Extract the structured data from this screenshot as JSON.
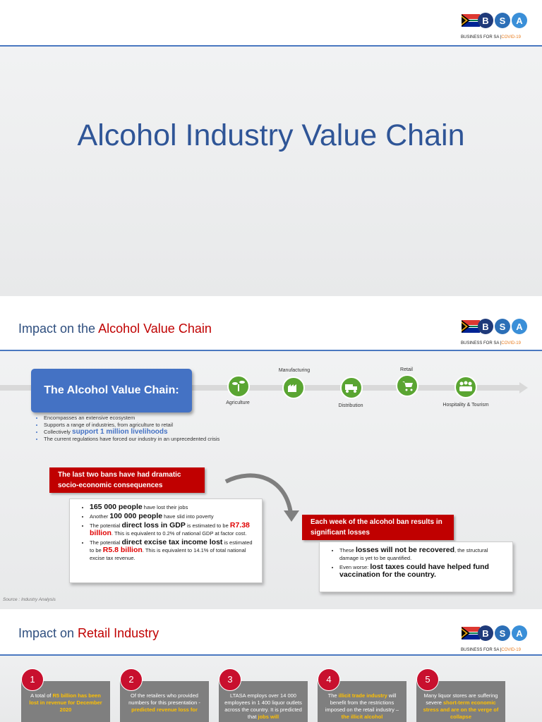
{
  "logo": {
    "letters": [
      "B",
      "S",
      "A"
    ],
    "name": "BUSINESS FOR SA |",
    "tag": "COVID-19"
  },
  "slide1": {
    "title": "Alcohol Industry Value Chain"
  },
  "slide2": {
    "heading": [
      {
        "text": "Impact on the "
      },
      {
        "text": "Alcohol Value Chain",
        "style": "red"
      }
    ],
    "chain_title": "The Alcohol Value Chain:",
    "stages": [
      "Agriculture",
      "Manufacturing",
      "Distribution",
      "Retail",
      "Hospitality & Tourism"
    ],
    "bullets": [
      [
        {
          "text": "Encompasses an extensive ecosystem"
        }
      ],
      [
        {
          "text": "Supports a range of  industries, from agriculture to retail"
        }
      ],
      [
        {
          "text": "Collectively "
        },
        {
          "text": "support 1 million livelihoods",
          "style": "blue-big"
        }
      ],
      [
        {
          "text": "The current regulations have forced our industry in an unprecedented crisis"
        }
      ]
    ],
    "callout1": "The last two bans have had dramatic socio-economic consequences",
    "impacts1": [
      [
        {
          "text": "165 000 people",
          "style": "bold-big"
        },
        {
          "text": " have lost their jobs"
        }
      ],
      [
        {
          "text": "Another "
        },
        {
          "text": "100 000 people",
          "style": "bold-big"
        },
        {
          "text": " have slid into poverty"
        }
      ],
      [
        {
          "text": "The potential "
        },
        {
          "text": "direct loss in GDP",
          "style": "bold-big"
        },
        {
          "text": " is estimated to be "
        },
        {
          "text": "R7.38 billion",
          "style": "red-big"
        },
        {
          "text": ". This is equivalent to 0.2% of national GDP at factor cost."
        }
      ],
      [
        {
          "text": "The potential "
        },
        {
          "text": "direct excise tax income lost",
          "style": "bold-big"
        },
        {
          "text": " is estimated to be "
        },
        {
          "text": "R5.8 billion",
          "style": "red-big"
        },
        {
          "text": ". This is equivalent to 14.1% of total national excise tax revenue."
        }
      ]
    ],
    "callout2": "Each week of the alcohol ban results in significant losses",
    "impacts2": [
      [
        {
          "text": "These "
        },
        {
          "text": "losses will not be recovered",
          "style": "bold-big"
        },
        {
          "text": ", the structural damage is yet to be quantified."
        }
      ],
      [
        {
          "text": "Even worse: "
        },
        {
          "text": "lost taxes could have helped fund vaccination for the country.",
          "style": "bold-big"
        }
      ]
    ],
    "source": "Source : Industry Analysis"
  },
  "slide3": {
    "heading": [
      {
        "text": "Impact on "
      },
      {
        "text": "Retail Industry",
        "style": "red"
      }
    ],
    "items": [
      {
        "number": "1",
        "text": [
          {
            "text": "A total of "
          },
          {
            "text": "R5 billion has been lost in revenue for December 2020",
            "style": "orange"
          }
        ]
      },
      {
        "number": "2",
        "text": [
          {
            "text": "Of the retailers who provided numbers for this presentation - "
          },
          {
            "text": "predicted revenue loss for",
            "style": "orange"
          }
        ]
      },
      {
        "number": "3",
        "text": [
          {
            "text": "LTASA employs over 14 000 employees in 1 400 liquor outlets across the country. It is predicted that "
          },
          {
            "text": "jobs will",
            "style": "orange"
          }
        ]
      },
      {
        "number": "4",
        "text": [
          {
            "text": "The "
          },
          {
            "text": "illicit trade industry",
            "style": "orange"
          },
          {
            "text": " will benefit from the restrictions imposed on the retail industry – "
          },
          {
            "text": "the illicit alcohol",
            "style": "orange"
          }
        ]
      },
      {
        "number": "5",
        "text": [
          {
            "text": "Many liquor stores are suffering severe "
          },
          {
            "text": "short-term economic stress and are on the verge of collapse",
            "style": "orange"
          }
        ]
      }
    ]
  }
}
